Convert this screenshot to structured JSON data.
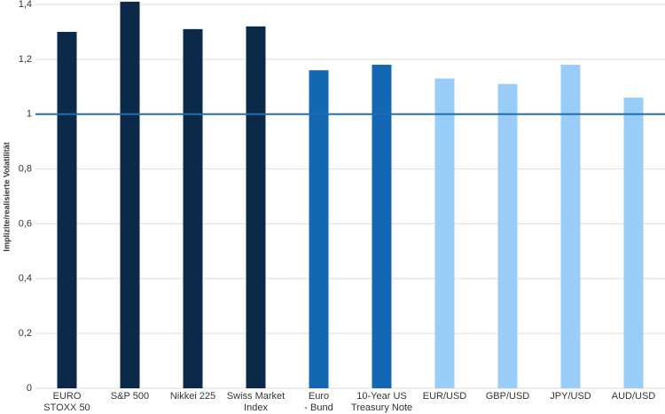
{
  "chart_data": {
    "type": "bar",
    "y_label": "Implizite/realisierte Volatilität",
    "categories": [
      "EURO\nSTOXX 50",
      "S&P 500",
      "Nikkei 225",
      "Swiss Market\nIndex",
      "Euro\n- Bund",
      "10-Year US\nTreasury Note",
      "EUR/USD",
      "GBP/USD",
      "JPY/USD",
      "AUD/USD"
    ],
    "values": [
      1.3,
      1.41,
      1.31,
      1.32,
      1.16,
      1.18,
      1.13,
      1.11,
      1.18,
      1.06
    ],
    "colors": [
      "#0b2a4a",
      "#0b2a4a",
      "#0b2a4a",
      "#0b2a4a",
      "#1467b3",
      "#1467b3",
      "#99cdf8",
      "#99cdf8",
      "#99cdf8",
      "#99cdf8"
    ],
    "ylim": [
      0,
      1.4
    ],
    "yticks": [
      0,
      {
        "value": 0.2,
        "label": "0,2"
      },
      {
        "value": 0.4,
        "label": "0,4"
      },
      {
        "value": 0.6,
        "label": "0,6"
      },
      {
        "value": 0.8,
        "label": "0,8"
      },
      1,
      {
        "value": 1.2,
        "label": "1,2"
      },
      {
        "value": 1.4,
        "label": "1,4"
      }
    ],
    "reference_line": 1,
    "reference_color": "#1f6fb5",
    "grid": true
  }
}
